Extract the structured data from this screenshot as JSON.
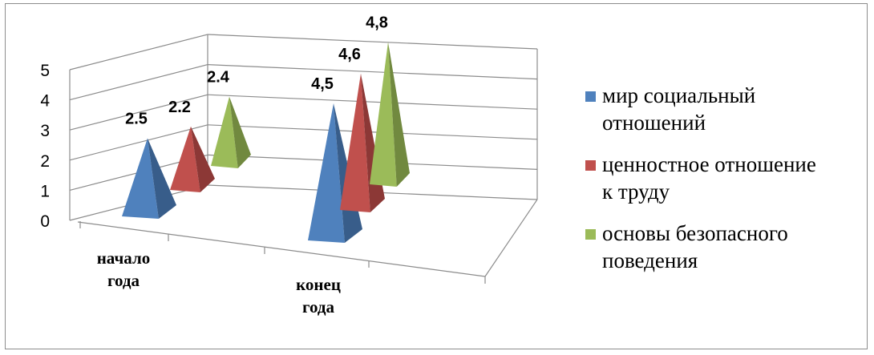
{
  "chart_data": {
    "type": "bar",
    "style": "3d-pyramid",
    "categories": [
      [
        "начало",
        "года"
      ],
      [
        "конец",
        "года"
      ]
    ],
    "series": [
      {
        "name": [
          "мир социальный",
          "отношений"
        ],
        "values": [
          2.5,
          4.5
        ],
        "labels": [
          "2.5",
          "4,5"
        ],
        "color": "#4f81bd",
        "dark": "#385d8a"
      },
      {
        "name": [
          "ценностное отношение",
          "к труду"
        ],
        "values": [
          2.2,
          4.6
        ],
        "labels": [
          "2.2",
          "4,6"
        ],
        "color": "#c0504d",
        "dark": "#8c3836"
      },
      {
        "name": [
          "основы безопасного",
          "поведения"
        ],
        "values": [
          2.4,
          4.8
        ],
        "labels": [
          "2.4",
          "4,8"
        ],
        "color": "#9bbb59",
        "dark": "#71893f"
      }
    ],
    "y_ticks": [
      "0",
      "1",
      "2",
      "3",
      "4",
      "5"
    ],
    "ylim": [
      0,
      5
    ],
    "grid": true,
    "legend_position": "right"
  }
}
